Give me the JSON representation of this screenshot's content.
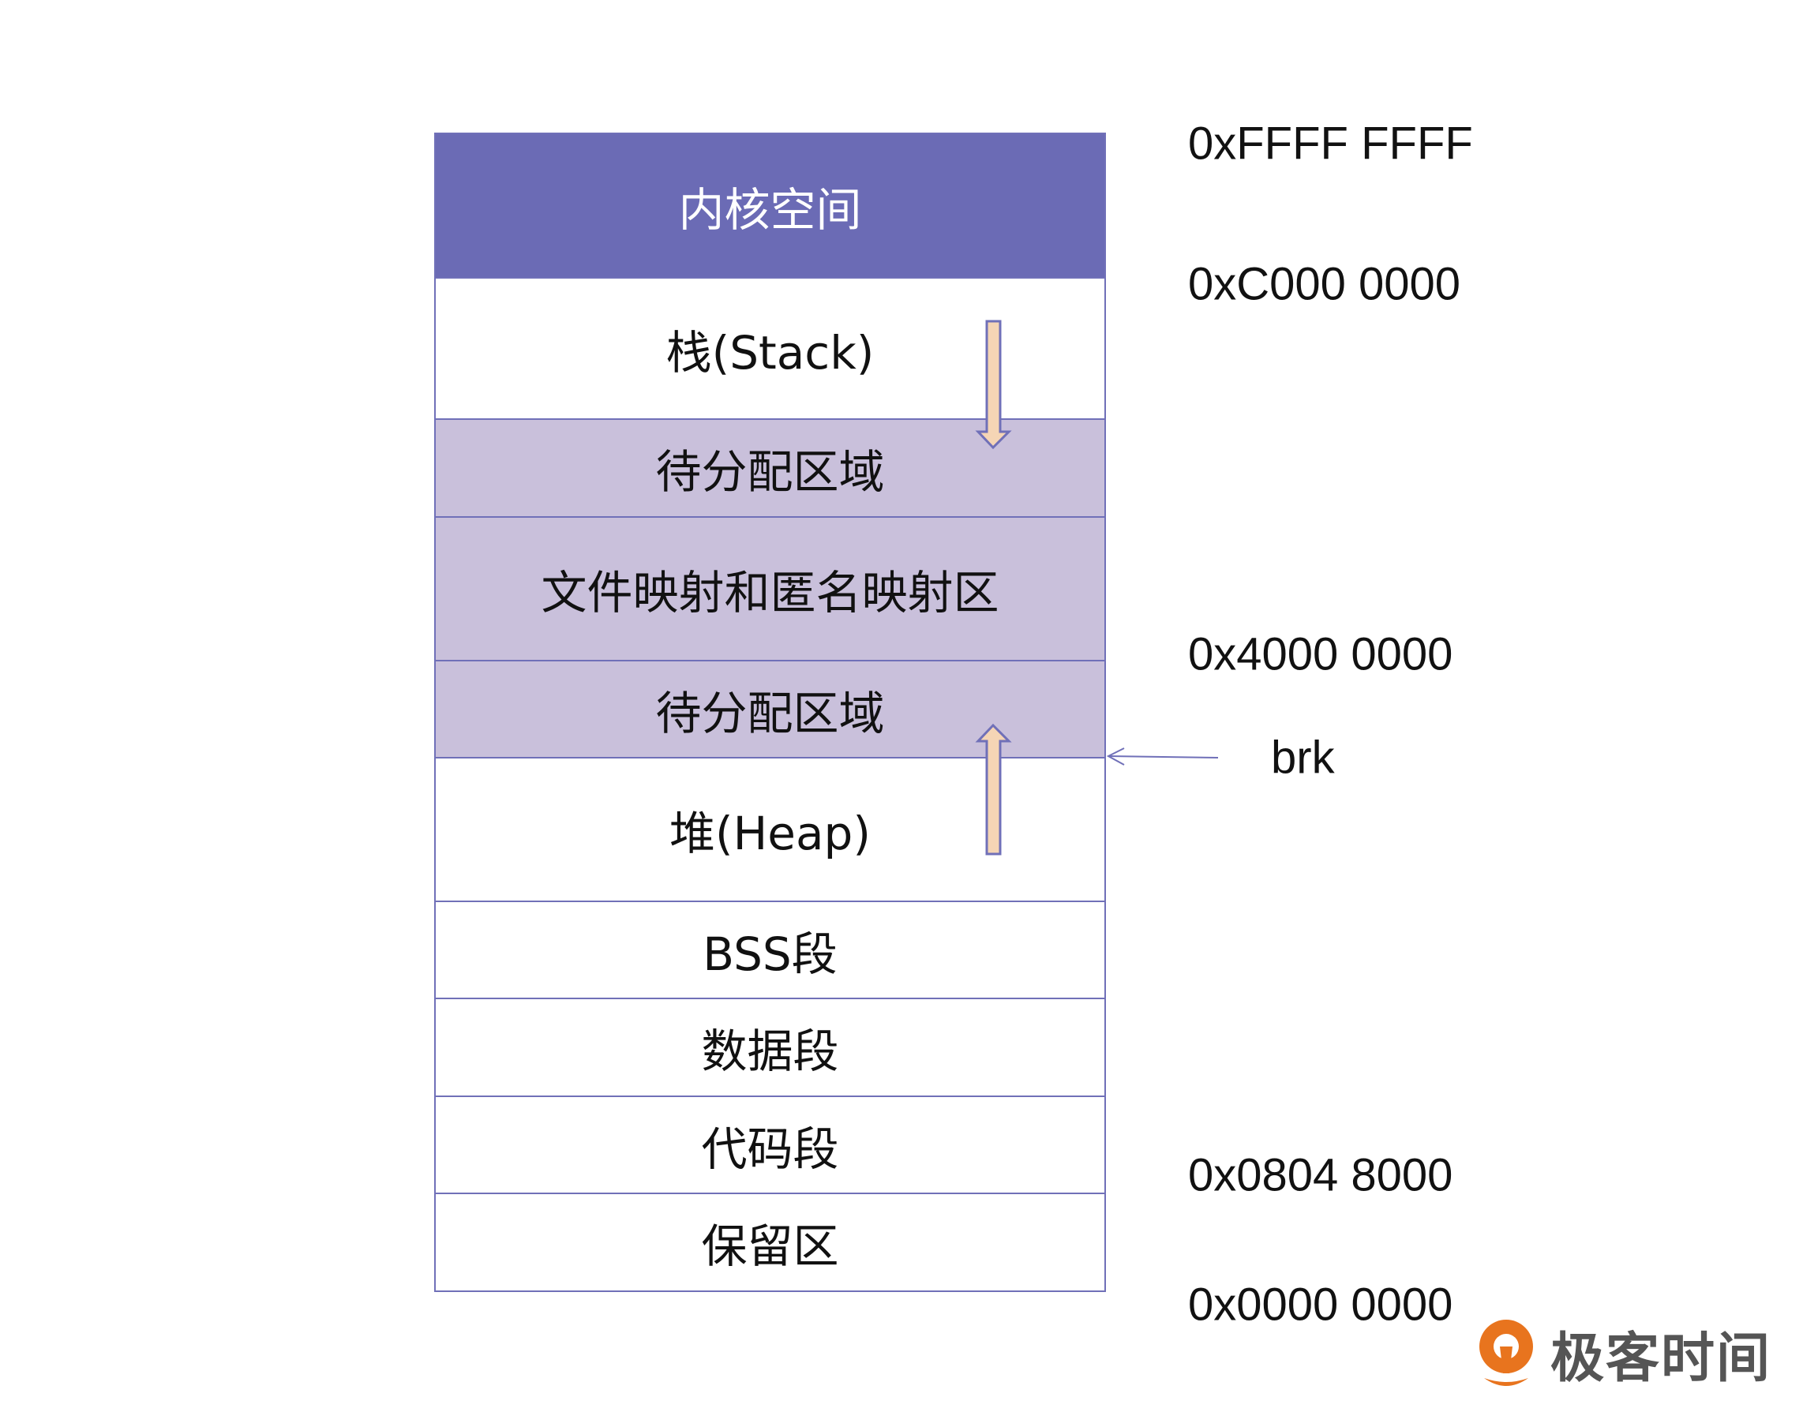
{
  "segments": [
    {
      "label": "内核空间",
      "fill": "#6B6BB5",
      "text_color": "#ffffff"
    },
    {
      "label": "栈(Stack)",
      "fill": "#ffffff"
    },
    {
      "label": "待分配区域",
      "fill": "#C9C0DB"
    },
    {
      "label": "文件映射和匿名映射区",
      "fill": "#C9C0DB"
    },
    {
      "label": "待分配区域",
      "fill": "#C9C0DB"
    },
    {
      "label": "堆(Heap)",
      "fill": "#ffffff"
    },
    {
      "label": "BSS段",
      "fill": "#ffffff"
    },
    {
      "label": "数据段",
      "fill": "#ffffff"
    },
    {
      "label": "代码段",
      "fill": "#ffffff"
    },
    {
      "label": "保留区",
      "fill": "#ffffff"
    }
  ],
  "addresses": {
    "top": "0xFFFF FFFF",
    "kernel_start": "0xC000 0000",
    "mmap_start": "0x4000 0000",
    "code_start": "0x0804 8000",
    "bottom": "0x0000 0000"
  },
  "brk_label": "brk",
  "colors": {
    "border": "#7070B8",
    "arrow_fill": "#F5D5B5",
    "logo_orange": "#E8741E"
  },
  "logo": {
    "text": "极客时间",
    "icon": "geektime-logo-icon"
  }
}
